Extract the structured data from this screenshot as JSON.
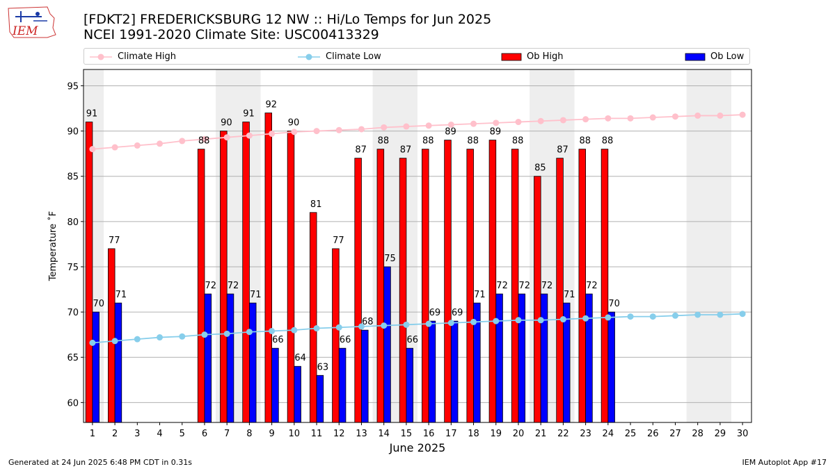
{
  "header": {
    "title_line1": "[FDKT2] FREDERICKSBURG 12 NW :: Hi/Lo Temps for Jun 2025",
    "title_line2": "NCEI 1991-2020 Climate Site: USC00413329",
    "logo_text": "IEM"
  },
  "footer": {
    "generated": "Generated at 24 Jun 2025 6:48 PM CDT in 0.31s",
    "app": "IEM Autoplot App #17"
  },
  "colors": {
    "ob_high": "#ff0000",
    "ob_low": "#0000ff",
    "climate_high": "#ffc0cb",
    "climate_low": "#87ceeb",
    "weekend_band": "#eeeeee",
    "grid": "#b0b0b0"
  },
  "chart_data": {
    "type": "bar",
    "xlabel": "June 2025",
    "ylabel": "Temperature ˚F",
    "ylim": [
      57.8,
      96.8
    ],
    "y_ticks": [
      60,
      65,
      70,
      75,
      80,
      85,
      90,
      95
    ],
    "grid": "horizontal",
    "legend_position": "top",
    "categories": [
      "1",
      "2",
      "3",
      "4",
      "5",
      "6",
      "7",
      "8",
      "9",
      "10",
      "11",
      "12",
      "13",
      "14",
      "15",
      "16",
      "17",
      "18",
      "19",
      "20",
      "21",
      "22",
      "23",
      "24",
      "25",
      "26",
      "27",
      "28",
      "29",
      "30"
    ],
    "shaded_weekend_days": [
      1,
      7,
      8,
      14,
      15,
      21,
      22,
      28,
      29
    ],
    "legend": [
      {
        "name": "Climate High",
        "kind": "line",
        "color": "#ffc0cb"
      },
      {
        "name": "Climate Low",
        "kind": "line",
        "color": "#87ceeb"
      },
      {
        "name": "Ob High",
        "kind": "bar",
        "color": "#ff0000"
      },
      {
        "name": "Ob Low",
        "kind": "bar",
        "color": "#0000ff"
      }
    ],
    "series": [
      {
        "name": "Ob High",
        "type": "bar",
        "values": [
          91,
          77,
          null,
          null,
          null,
          88,
          90,
          91,
          92,
          90,
          81,
          77,
          87,
          88,
          87,
          88,
          89,
          88,
          89,
          88,
          85,
          87,
          88,
          88,
          null,
          null,
          null,
          null,
          null,
          null
        ],
        "labels": [
          "91",
          "77",
          "",
          "",
          "",
          "88",
          "90",
          "91",
          "92",
          "90",
          "81",
          "77",
          "87",
          "88",
          "87",
          "88",
          "89",
          "88",
          "89",
          "88",
          "85",
          "87",
          "88",
          "88",
          "",
          "",
          "",
          "",
          "",
          ""
        ]
      },
      {
        "name": "Ob Low",
        "type": "bar",
        "values": [
          70,
          71,
          null,
          null,
          null,
          72,
          72,
          71,
          66,
          64,
          63,
          66,
          68,
          75,
          66,
          69,
          69,
          71,
          72,
          72,
          72,
          71,
          72,
          70,
          null,
          null,
          null,
          null,
          null,
          null
        ],
        "labels": [
          "70",
          "71",
          "",
          "",
          "",
          "72",
          "72",
          "71",
          "66",
          "64",
          "63",
          "66",
          "68",
          "75",
          "66",
          "69",
          "69",
          "71",
          "72",
          "72",
          "72",
          "71",
          "72",
          "70",
          "",
          "",
          "",
          "",
          "",
          ""
        ]
      },
      {
        "name": "Climate High",
        "type": "line",
        "values": [
          88.0,
          88.2,
          88.4,
          88.6,
          88.9,
          89.1,
          89.3,
          89.5,
          89.7,
          89.9,
          90.0,
          90.1,
          90.2,
          90.4,
          90.5,
          90.6,
          90.7,
          90.8,
          90.9,
          91.0,
          91.1,
          91.2,
          91.3,
          91.4,
          91.4,
          91.5,
          91.6,
          91.7,
          91.7,
          91.8
        ]
      },
      {
        "name": "Climate Low",
        "type": "line",
        "values": [
          66.6,
          66.8,
          67.0,
          67.2,
          67.3,
          67.5,
          67.6,
          67.8,
          67.9,
          68.0,
          68.2,
          68.3,
          68.4,
          68.5,
          68.6,
          68.7,
          68.8,
          68.9,
          69.0,
          69.1,
          69.1,
          69.2,
          69.3,
          69.4,
          69.5,
          69.5,
          69.6,
          69.7,
          69.7,
          69.8
        ]
      }
    ]
  }
}
